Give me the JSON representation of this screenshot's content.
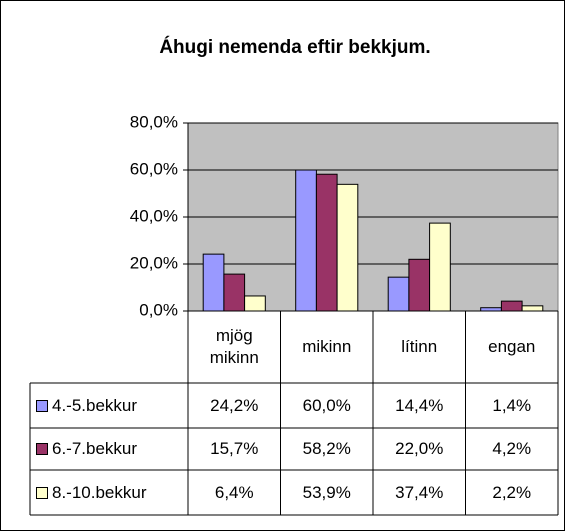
{
  "chart_data": {
    "type": "bar",
    "title": "Áhugi nemenda eftir bekkjum.",
    "categories": [
      "mjög mikinn",
      "mikinn",
      "lítinn",
      "engan"
    ],
    "series": [
      {
        "name": "4.-5.bekkur",
        "color": "#9999ff",
        "values": [
          24.2,
          60.0,
          14.4,
          1.4
        ],
        "value_labels": [
          "24,2%",
          "60,0%",
          "14,4%",
          "1,4%"
        ]
      },
      {
        "name": "6.-7.bekkur",
        "color": "#993366",
        "values": [
          15.7,
          58.2,
          22.0,
          4.2
        ],
        "value_labels": [
          "15,7%",
          "58,2%",
          "22,0%",
          "4,2%"
        ]
      },
      {
        "name": "8.-10.bekkur",
        "color": "#ffffcc",
        "values": [
          6.4,
          53.9,
          37.4,
          2.2
        ],
        "value_labels": [
          "6,4%",
          "53,9%",
          "37,4%",
          "2,2%"
        ]
      }
    ],
    "ylim": [
      0,
      80
    ],
    "yticks": [
      {
        "value": 0,
        "label": "0,0%"
      },
      {
        "value": 20,
        "label": "20,0%"
      },
      {
        "value": 40,
        "label": "40,0%"
      },
      {
        "value": 60,
        "label": "60,0%"
      },
      {
        "value": 80,
        "label": "80,0%"
      }
    ],
    "grid": true
  }
}
